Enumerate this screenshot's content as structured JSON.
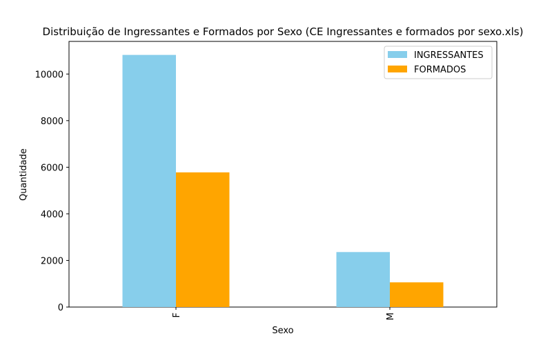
{
  "chart_data": {
    "type": "bar",
    "title": "Distribuição de Ingressantes e Formados por Sexo (CE Ingressantes e formados por sexo.xls)",
    "xlabel": "Sexo",
    "ylabel": "Quantidade",
    "categories": [
      "F",
      "M"
    ],
    "series": [
      {
        "name": "INGRESSANTES",
        "values": [
          10820,
          2360
        ],
        "color": "#87ceeb"
      },
      {
        "name": "FORMADOS",
        "values": [
          5780,
          1060
        ],
        "color": "#ffa500"
      }
    ],
    "ylim": [
      0,
      11400
    ],
    "yticks": [
      0,
      2000,
      4000,
      6000,
      8000,
      10000
    ],
    "yticklabels": [
      "0",
      "2000",
      "4000",
      "6000",
      "8000",
      "10000"
    ],
    "grid": false,
    "legend_position": "top-right",
    "xtick_rotation": "vertical"
  }
}
